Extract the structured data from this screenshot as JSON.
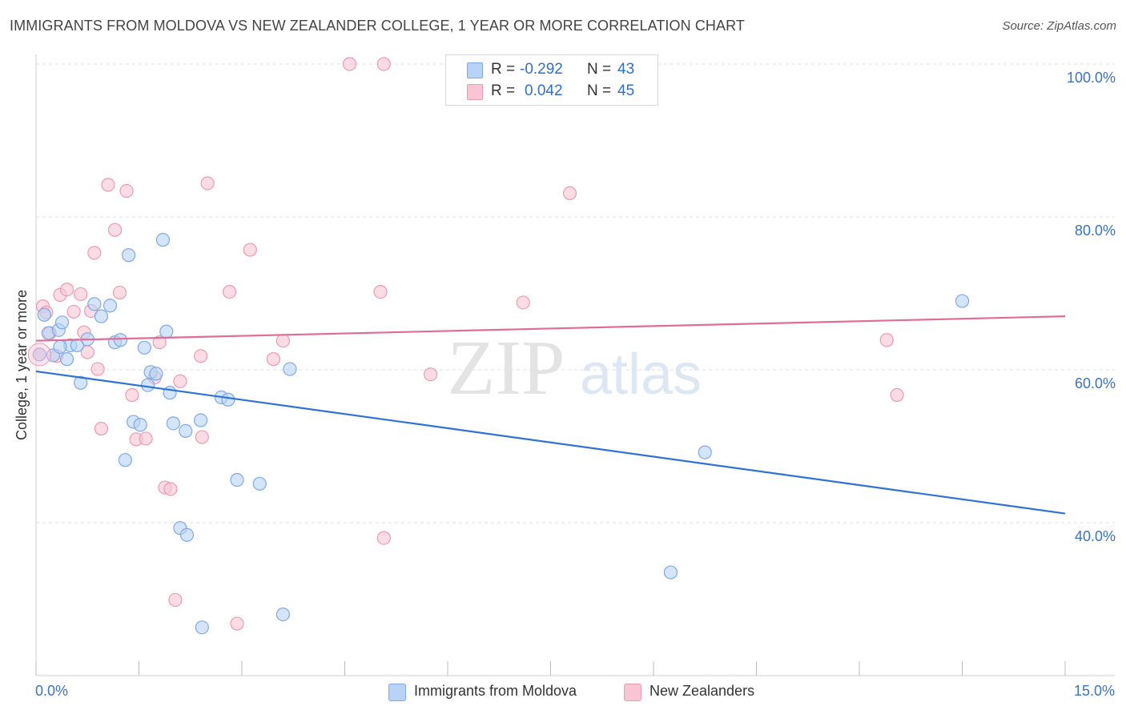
{
  "header": {
    "title": "IMMIGRANTS FROM MOLDOVA VS NEW ZEALANDER COLLEGE, 1 YEAR OR MORE CORRELATION CHART",
    "source": "Source: ZipAtlas.com"
  },
  "legend": {
    "series1": {
      "r_label": "R =",
      "r_value": "-0.292",
      "n_label": "N =",
      "n_value": "43"
    },
    "series2": {
      "r_label": "R =",
      "r_value": "0.042",
      "n_label": "N =",
      "n_value": "45"
    }
  },
  "watermark": {
    "zip": "ZIP",
    "atlas": "atlas"
  },
  "colors": {
    "blue_fill": "#b8d3f5",
    "blue_stroke": "#7fa9e3",
    "blue_line": "#2f72d6",
    "pink_fill": "#f9c4d4",
    "pink_stroke": "#eb9ab4",
    "pink_line": "#e06d97",
    "grid": "#dddddd",
    "axis_label": "#3a72c8"
  },
  "chart_data": {
    "type": "scatter",
    "title": "IMMIGRANTS FROM MOLDOVA VS NEW ZEALANDER COLLEGE, 1 YEAR OR MORE CORRELATION CHART",
    "xlabel": "",
    "ylabel": "College, 1 year or more",
    "xlim": [
      0,
      15
    ],
    "ylim": [
      22,
      102
    ],
    "x_tick_labels": [
      "0.0%",
      "15.0%"
    ],
    "y_ticks": [
      40,
      60,
      80,
      100
    ],
    "y_tick_labels": [
      "40.0%",
      "60.0%",
      "80.0%",
      "100.0%"
    ],
    "grid": true,
    "legend_position": "bottom",
    "series": [
      {
        "name": "Immigrants from Moldova",
        "color": "#b8d3f5",
        "trend": {
          "x": [
            0,
            15
          ],
          "y": [
            59.8,
            41.2
          ]
        },
        "points": [
          [
            0.05,
            62.0
          ],
          [
            0.12,
            67.2
          ],
          [
            0.18,
            64.8
          ],
          [
            0.25,
            61.9
          ],
          [
            0.33,
            65.2
          ],
          [
            0.38,
            66.2
          ],
          [
            0.45,
            61.4
          ],
          [
            0.5,
            63.2
          ],
          [
            0.6,
            63.2
          ],
          [
            0.65,
            58.3
          ],
          [
            0.75,
            64.0
          ],
          [
            0.85,
            68.6
          ],
          [
            0.95,
            67.0
          ],
          [
            1.08,
            68.4
          ],
          [
            1.15,
            63.6
          ],
          [
            1.23,
            63.9
          ],
          [
            1.3,
            48.2
          ],
          [
            1.35,
            75.0
          ],
          [
            1.42,
            53.2
          ],
          [
            1.52,
            52.8
          ],
          [
            1.58,
            62.9
          ],
          [
            1.63,
            58.0
          ],
          [
            1.67,
            59.7
          ],
          [
            1.75,
            59.5
          ],
          [
            1.85,
            77.0
          ],
          [
            1.9,
            65.0
          ],
          [
            1.95,
            57.0
          ],
          [
            2.0,
            53.0
          ],
          [
            2.1,
            39.3
          ],
          [
            2.18,
            52.0
          ],
          [
            2.2,
            38.4
          ],
          [
            2.4,
            53.4
          ],
          [
            2.42,
            26.3
          ],
          [
            2.7,
            56.4
          ],
          [
            2.8,
            56.1
          ],
          [
            2.93,
            45.6
          ],
          [
            3.26,
            45.1
          ],
          [
            3.6,
            28.0
          ],
          [
            3.7,
            60.1
          ],
          [
            9.75,
            49.2
          ],
          [
            13.5,
            69.0
          ],
          [
            9.25,
            33.5
          ],
          [
            0.35,
            63.0
          ]
        ]
      },
      {
        "name": "New Zealanders",
        "color": "#f9c4d4",
        "trend": {
          "x": [
            0,
            15
          ],
          "y": [
            63.8,
            67.0
          ]
        },
        "points": [
          [
            0.05,
            62.0
          ],
          [
            0.1,
            68.3
          ],
          [
            0.15,
            67.5
          ],
          [
            0.2,
            64.8
          ],
          [
            0.3,
            61.8
          ],
          [
            0.35,
            69.8
          ],
          [
            0.45,
            70.5
          ],
          [
            0.55,
            67.6
          ],
          [
            0.65,
            69.9
          ],
          [
            0.7,
            64.9
          ],
          [
            0.75,
            62.3
          ],
          [
            0.8,
            67.7
          ],
          [
            0.85,
            75.3
          ],
          [
            0.9,
            60.1
          ],
          [
            0.95,
            52.3
          ],
          [
            1.05,
            84.2
          ],
          [
            1.15,
            78.3
          ],
          [
            1.22,
            70.1
          ],
          [
            1.32,
            83.4
          ],
          [
            1.4,
            56.7
          ],
          [
            1.46,
            50.9
          ],
          [
            1.6,
            51.0
          ],
          [
            1.73,
            59.0
          ],
          [
            1.8,
            63.6
          ],
          [
            1.88,
            44.6
          ],
          [
            1.96,
            44.4
          ],
          [
            2.03,
            29.9
          ],
          [
            2.1,
            58.5
          ],
          [
            2.4,
            61.8
          ],
          [
            2.42,
            51.2
          ],
          [
            2.5,
            84.4
          ],
          [
            2.82,
            70.2
          ],
          [
            2.93,
            26.8
          ],
          [
            3.12,
            75.7
          ],
          [
            3.46,
            61.4
          ],
          [
            3.6,
            63.8
          ],
          [
            4.57,
            100.0
          ],
          [
            5.07,
            100.0
          ],
          [
            5.02,
            70.2
          ],
          [
            5.07,
            38.0
          ],
          [
            5.75,
            59.4
          ],
          [
            7.1,
            68.8
          ],
          [
            7.78,
            83.1
          ],
          [
            12.4,
            63.9
          ],
          [
            12.55,
            56.7
          ]
        ]
      }
    ]
  }
}
